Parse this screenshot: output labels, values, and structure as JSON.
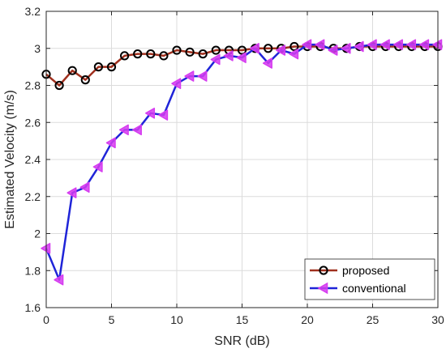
{
  "chart_data": {
    "type": "line",
    "title": "",
    "xlabel": "SNR (dB)",
    "ylabel": "Estimated Velocity (m/s)",
    "xlim": [
      0,
      30
    ],
    "ylim": [
      1.6,
      3.2
    ],
    "xticks": [
      0,
      5,
      10,
      15,
      20,
      25,
      30
    ],
    "yticks": [
      1.6,
      1.8,
      2.0,
      2.2,
      2.4,
      2.6,
      2.8,
      3.0,
      3.2
    ],
    "xtick_labels": [
      "0",
      "5",
      "10",
      "15",
      "20",
      "25",
      "30"
    ],
    "ytick_labels": [
      "1.6",
      "1.8",
      "2",
      "2.2",
      "2.4",
      "2.6",
      "2.8",
      "3",
      "3.2"
    ],
    "grid": true,
    "legend_position": "bottom-right",
    "x": [
      0,
      1,
      2,
      3,
      4,
      5,
      6,
      7,
      8,
      9,
      10,
      11,
      12,
      13,
      14,
      15,
      16,
      17,
      18,
      19,
      20,
      21,
      22,
      23,
      24,
      25,
      26,
      27,
      28,
      29,
      30
    ],
    "series": [
      {
        "name": "proposed",
        "line_color": "#a0301e",
        "marker": "circle",
        "marker_edge": "#000000",
        "values": [
          2.86,
          2.8,
          2.88,
          2.83,
          2.9,
          2.9,
          2.96,
          2.97,
          2.97,
          2.96,
          2.99,
          2.98,
          2.97,
          2.99,
          2.99,
          2.99,
          3.0,
          3.0,
          3.0,
          3.01,
          3.01,
          3.01,
          3.0,
          3.0,
          3.01,
          3.01,
          3.01,
          3.01,
          3.01,
          3.01,
          3.01
        ]
      },
      {
        "name": "conventional",
        "line_color": "#1f24d8",
        "marker": "triangle-left",
        "marker_color": "#d63cf0",
        "values": [
          1.92,
          1.75,
          2.22,
          2.25,
          2.36,
          2.49,
          2.56,
          2.56,
          2.65,
          2.64,
          2.81,
          2.85,
          2.85,
          2.94,
          2.96,
          2.95,
          3.0,
          2.92,
          2.99,
          2.97,
          3.02,
          3.02,
          2.99,
          3.0,
          3.01,
          3.02,
          3.02,
          3.02,
          3.02,
          3.02,
          3.02
        ]
      }
    ]
  }
}
